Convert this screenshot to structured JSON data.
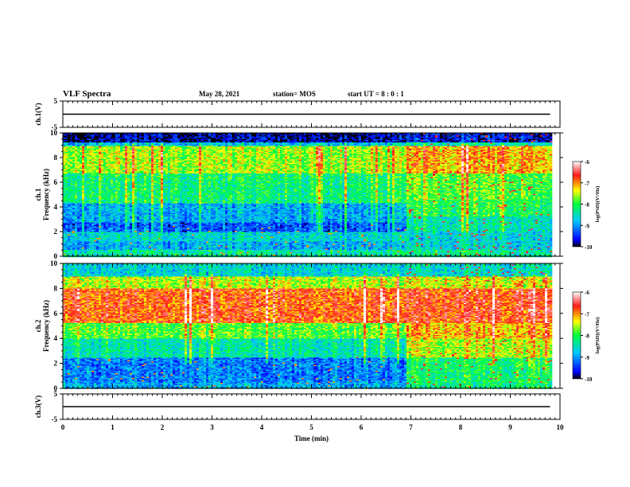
{
  "header": {
    "title": "VLF Spectra",
    "date": "May 28, 2021",
    "station": "station= MOS",
    "start": "start  UT =  8 : 0  : 1"
  },
  "chart_data": [
    {
      "type": "line",
      "panel": "ch1-waveform",
      "ylabel": "ch.1(V)",
      "ylim": [
        -5,
        5
      ],
      "yticks": [
        5,
        -5
      ],
      "x": [
        0,
        9.8
      ],
      "series": [
        {
          "values": [
            0,
            0
          ]
        }
      ]
    },
    {
      "type": "heatmap",
      "panel": "ch1-spectrogram",
      "ylabel": "ch.1\nFrequency (kHz)",
      "ylim": [
        0,
        10
      ],
      "yticks": [
        0,
        2,
        4,
        6,
        8,
        10
      ],
      "xlim": [
        0,
        10
      ],
      "data_end_min": 9.8,
      "transition_min": 6.9,
      "bands_before": [
        {
          "f0": 0,
          "f1": 0.6,
          "level": -8.4
        },
        {
          "f0": 0.6,
          "f1": 1.2,
          "level": -8.9
        },
        {
          "f0": 1.2,
          "f1": 2.0,
          "level": -8.6
        },
        {
          "f0": 2.0,
          "f1": 2.8,
          "level": -9.3
        },
        {
          "f0": 2.8,
          "f1": 4.3,
          "level": -8.9
        },
        {
          "f0": 4.3,
          "f1": 6.8,
          "level": -8.2
        },
        {
          "f0": 6.8,
          "f1": 9.0,
          "level": -7.6
        },
        {
          "f0": 9.0,
          "f1": 9.3,
          "level": -8.8
        },
        {
          "f0": 9.3,
          "f1": 10.0,
          "level": -9.8
        }
      ],
      "bands_after": [
        {
          "f0": 0,
          "f1": 0.6,
          "level": -8.3
        },
        {
          "f0": 0.6,
          "f1": 2.0,
          "level": -8.6
        },
        {
          "f0": 2.0,
          "f1": 3.3,
          "level": -8.4
        },
        {
          "f0": 3.3,
          "f1": 4.6,
          "level": -8.0
        },
        {
          "f0": 4.6,
          "f1": 6.8,
          "level": -7.8
        },
        {
          "f0": 6.8,
          "f1": 9.0,
          "level": -7.1
        },
        {
          "f0": 9.0,
          "f1": 9.3,
          "level": -8.4
        },
        {
          "f0": 9.3,
          "f1": 10.0,
          "level": -9.6
        }
      ],
      "colorbar": {
        "label": "log(PSD)(V²/Hz)",
        "range": [
          -10,
          -6
        ],
        "ticks": [
          -6,
          -7,
          -8,
          -9,
          -10
        ]
      }
    },
    {
      "type": "heatmap",
      "panel": "ch2-spectrogram",
      "ylabel": "ch.2\nFrequency (kHz)",
      "ylim": [
        0,
        10
      ],
      "yticks": [
        0,
        2,
        4,
        6,
        8,
        10
      ],
      "xlim": [
        0,
        10
      ],
      "data_end_min": 9.8,
      "transition_min": 6.9,
      "bands_before": [
        {
          "f0": 0,
          "f1": 0.5,
          "level": -8.9
        },
        {
          "f0": 0.5,
          "f1": 2.5,
          "level": -9.1
        },
        {
          "f0": 2.5,
          "f1": 4.0,
          "level": -8.4
        },
        {
          "f0": 4.0,
          "f1": 5.3,
          "level": -7.8
        },
        {
          "f0": 5.3,
          "f1": 8.0,
          "level": -6.8
        },
        {
          "f0": 8.0,
          "f1": 9.0,
          "level": -7.5
        },
        {
          "f0": 9.0,
          "f1": 10.0,
          "level": -8.6
        }
      ],
      "bands_after": [
        {
          "f0": 0,
          "f1": 0.5,
          "level": -8.2
        },
        {
          "f0": 0.5,
          "f1": 2.5,
          "level": -8.1
        },
        {
          "f0": 2.5,
          "f1": 4.0,
          "level": -7.5
        },
        {
          "f0": 4.0,
          "f1": 5.3,
          "level": -7.1
        },
        {
          "f0": 5.3,
          "f1": 8.0,
          "level": -6.7
        },
        {
          "f0": 8.0,
          "f1": 9.0,
          "level": -7.4
        },
        {
          "f0": 9.0,
          "f1": 10.0,
          "level": -8.5
        }
      ],
      "colorbar": {
        "label": "log(PSD)(V²/Hz)",
        "range": [
          -10,
          -6
        ],
        "ticks": [
          -6,
          -7,
          -8,
          -9,
          -10
        ]
      }
    },
    {
      "type": "line",
      "panel": "ch3-waveform",
      "ylabel": "ch.3(V)",
      "ylim": [
        -5,
        5
      ],
      "yticks": [
        5,
        -5
      ],
      "x": [
        0,
        9.8
      ],
      "series": [
        {
          "values": [
            0,
            0
          ]
        }
      ]
    }
  ],
  "xaxis": {
    "label": "Time (min)",
    "ticks": [
      0,
      1,
      2,
      3,
      4,
      5,
      6,
      7,
      8,
      9,
      10
    ],
    "range": [
      0,
      10
    ]
  }
}
